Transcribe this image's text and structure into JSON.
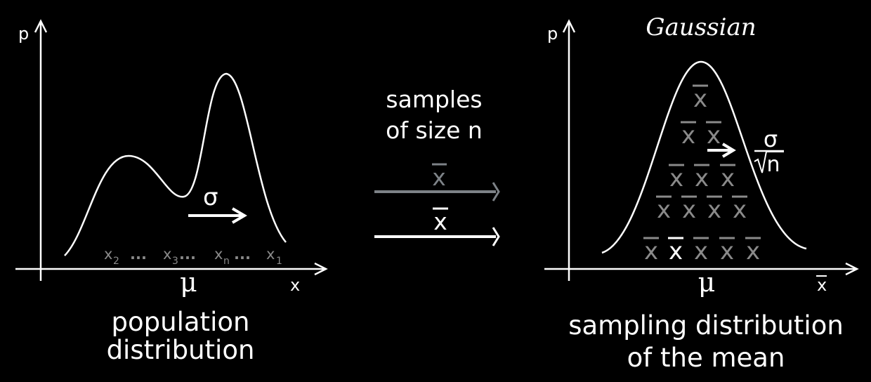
{
  "left_panel": {
    "y_axis_label": "p",
    "x_axis_label": "x",
    "mu_label": "μ",
    "sigma_label": "σ",
    "samples_row": {
      "x2": "x",
      "x2_sub": "2",
      "dots1": "...",
      "x3": "x",
      "x3_sub": "3",
      "dots2": "...",
      "xn": "x",
      "xn_sub": "n",
      "dots3": "...",
      "x1": "x",
      "x1_sub": "1"
    },
    "caption_line1": "population",
    "caption_line2": "distribution"
  },
  "middle": {
    "label_line1": "samples",
    "label_line2": "of size n",
    "xbar_top": "x",
    "xbar_bottom": "x"
  },
  "right_panel": {
    "title": "Gaussian",
    "y_axis_label": "p",
    "x_axis_label": "x",
    "mu_label": "μ",
    "sigma_label": "σ",
    "sqrt_n_label": "n",
    "xbar_glyph": "x",
    "caption_line1": "sampling distribution",
    "caption_line2": "of the mean"
  },
  "colors": {
    "background": "#000000",
    "foreground": "#ffffff",
    "muted": "#8a8a8a",
    "arrow_gray": "#7d8287"
  }
}
